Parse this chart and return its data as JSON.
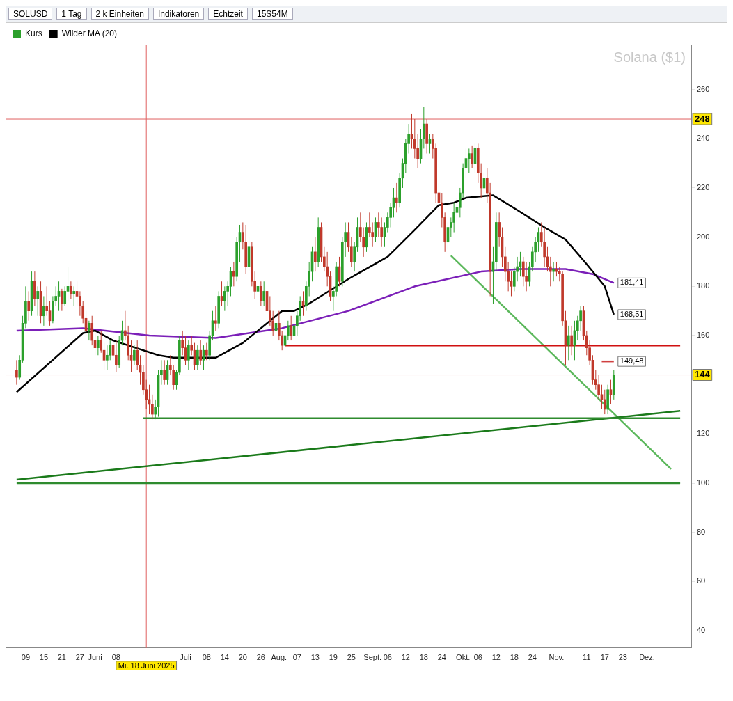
{
  "chart_data": {
    "type": "candlestick",
    "title": "Solana ($1)",
    "legend": "top left",
    "grid": false,
    "xlim": [
      "2025-05-06",
      "2025-12-12"
    ],
    "ylim": [
      33,
      278
    ],
    "yticks": [
      40,
      60,
      80,
      100,
      120,
      160,
      180,
      200,
      220,
      240,
      260
    ],
    "xticks": [
      {
        "value": "2025-05-09",
        "label": "09"
      },
      {
        "value": "2025-05-15",
        "label": "15"
      },
      {
        "value": "2025-05-21",
        "label": "21"
      },
      {
        "value": "2025-05-27",
        "label": "27"
      },
      {
        "value": "2025-06-01",
        "label": "Juni"
      },
      {
        "value": "2025-06-08",
        "label": "08"
      },
      {
        "value": "2025-07-01",
        "label": "Juli"
      },
      {
        "value": "2025-07-08",
        "label": "08"
      },
      {
        "value": "2025-07-14",
        "label": "14"
      },
      {
        "value": "2025-07-20",
        "label": "20"
      },
      {
        "value": "2025-07-26",
        "label": "26"
      },
      {
        "value": "2025-08-01",
        "label": "Aug."
      },
      {
        "value": "2025-08-07",
        "label": "07"
      },
      {
        "value": "2025-08-13",
        "label": "13"
      },
      {
        "value": "2025-08-19",
        "label": "19"
      },
      {
        "value": "2025-08-25",
        "label": "25"
      },
      {
        "value": "2025-09-01",
        "label": "Sept."
      },
      {
        "value": "2025-09-06",
        "label": "06"
      },
      {
        "value": "2025-09-12",
        "label": "12"
      },
      {
        "value": "2025-09-18",
        "label": "18"
      },
      {
        "value": "2025-09-24",
        "label": "24"
      },
      {
        "value": "2025-10-01",
        "label": "Okt."
      },
      {
        "value": "2025-10-06",
        "label": "06"
      },
      {
        "value": "2025-10-12",
        "label": "12"
      },
      {
        "value": "2025-10-18",
        "label": "18"
      },
      {
        "value": "2025-10-24",
        "label": "24"
      },
      {
        "value": "2025-11-01",
        "label": "Nov."
      },
      {
        "value": "2025-11-11",
        "label": "11"
      },
      {
        "value": "2025-11-17",
        "label": "17"
      },
      {
        "value": "2025-11-23",
        "label": "23"
      },
      {
        "value": "2025-12-01",
        "label": "Dez."
      }
    ],
    "ref_lines": [
      {
        "axis": "y",
        "value": 248,
        "label": "248",
        "color": "#e06060"
      },
      {
        "axis": "y",
        "value": 144,
        "label": "144",
        "color": "#e06060"
      },
      {
        "axis": "x",
        "value": "2025-06-18",
        "label": "Mi. 18 Juni 2025",
        "color": "#e06060"
      }
    ],
    "annotations": [
      "SOLUSD",
      "1 Tag",
      "2 k Einheiten",
      "Indikatoren",
      "Echtzeit",
      "15S54M"
    ],
    "series": [
      {
        "name": "Kurs",
        "type": "candlestick",
        "colors": [
          "#c0392b",
          "#2ca02c",
          "#2ca02c",
          "#2ca02c",
          "#c0392b",
          "#2ca02c",
          "#c0392b",
          "#2ca02c",
          "#c0392b",
          "#2ca02c",
          "#c0392b",
          "#c0392b",
          "#2ca02c",
          "#2ca02c",
          "#2ca02c",
          "#c0392b",
          "#2ca02c",
          "#2ca02c",
          "#c0392b",
          "#2ca02c",
          "#c0392b",
          "#c0392b",
          "#c0392b",
          "#c0392b",
          "#2ca02c",
          "#c0392b",
          "#c0392b",
          "#2ca02c",
          "#c0392b",
          "#c0392b",
          "#2ca02c",
          "#2ca02c",
          "#c0392b",
          "#c0392b",
          "#2ca02c",
          "#2ca02c",
          "#c0392b",
          "#c0392b",
          "#c0392b",
          "#2ca02c",
          "#c0392b",
          "#c0392b",
          "#c0392b",
          "#c0392b",
          "#c0392b",
          "#c0392b",
          "#2ca02c",
          "#2ca02c",
          "#2ca02c",
          "#c0392b",
          "#2ca02c",
          "#c0392b",
          "#c0392b",
          "#2ca02c",
          "#2ca02c",
          "#c0392b",
          "#c0392b",
          "#2ca02c",
          "#c0392b",
          "#c0392b",
          "#2ca02c",
          "#c0392b",
          "#2ca02c",
          "#c0392b",
          "#2ca02c",
          "#2ca02c",
          "#c0392b",
          "#2ca02c",
          "#c0392b",
          "#2ca02c",
          "#2ca02c",
          "#2ca02c",
          "#c0392b",
          "#2ca02c",
          "#2ca02c",
          "#c0392b",
          "#c0392b",
          "#2ca02c",
          "#c0392b",
          "#c0392b",
          "#2ca02c",
          "#c0392b",
          "#2ca02c",
          "#c0392b",
          "#c0392b",
          "#c0392b",
          "#2ca02c",
          "#c0392b",
          "#c0392b",
          "#2ca02c",
          "#2ca02c",
          "#c0392b",
          "#2ca02c",
          "#2ca02c",
          "#2ca02c",
          "#c0392b",
          "#2ca02c",
          "#2ca02c",
          "#2ca02c",
          "#c0392b",
          "#2ca02c",
          "#c0392b",
          "#c0392b",
          "#c0392b",
          "#c0392b",
          "#2ca02c",
          "#2ca02c",
          "#c0392b",
          "#2ca02c",
          "#2ca02c",
          "#c0392b",
          "#c0392b",
          "#2ca02c",
          "#2ca02c",
          "#c0392b",
          "#c0392b",
          "#2ca02c",
          "#c0392b",
          "#c0392b",
          "#2ca02c",
          "#c0392b",
          "#c0392b",
          "#2ca02c",
          "#2ca02c",
          "#2ca02c",
          "#2ca02c",
          "#c0392b",
          "#2ca02c",
          "#2ca02c",
          "#2ca02c",
          "#2ca02c",
          "#c0392b",
          "#c0392b",
          "#c0392b",
          "#2ca02c",
          "#2ca02c",
          "#c0392b",
          "#2ca02c",
          "#c0392b",
          "#c0392b",
          "#c0392b",
          "#c0392b",
          "#c0392b",
          "#2ca02c",
          "#2ca02c",
          "#2ca02c",
          "#2ca02c",
          "#2ca02c",
          "#2ca02c",
          "#2ca02c",
          "#2ca02c",
          "#c0392b",
          "#2ca02c",
          "#c0392b",
          "#c0392b",
          "#2ca02c",
          "#c0392b",
          "#c0392b",
          "#2ca02c",
          "#2ca02c",
          "#c0392b",
          "#c0392b",
          "#c0392b",
          "#c0392b",
          "#c0392b",
          "#2ca02c",
          "#2ca02c",
          "#2ca02c",
          "#c0392b",
          "#c0392b",
          "#2ca02c",
          "#2ca02c",
          "#2ca02c",
          "#2ca02c",
          "#c0392b",
          "#c0392b",
          "#c0392b",
          "#c0392b",
          "#2ca02c",
          "#c0392b",
          "#c0392b",
          "#c0392b",
          "#c0392b",
          "#2ca02c",
          "#c0392b",
          "#2ca02c",
          "#2ca02c",
          "#2ca02c",
          "#c0392b",
          "#c0392b",
          "#c0392b",
          "#c0392b",
          "#c0392b",
          "#c0392b",
          "#c0392b",
          "#c0392b",
          "#2ca02c",
          "#c0392b",
          "#2ca02c"
        ],
        "x": [
          "2025-05-06",
          "2025-05-07",
          "2025-05-08",
          "2025-05-09",
          "2025-05-10",
          "2025-05-11",
          "2025-05-12",
          "2025-05-13",
          "2025-05-14",
          "2025-05-15",
          "2025-05-16",
          "2025-05-17",
          "2025-05-18",
          "2025-05-19",
          "2025-05-20",
          "2025-05-21",
          "2025-05-22",
          "2025-05-23",
          "2025-05-24",
          "2025-05-25",
          "2025-05-26",
          "2025-05-27",
          "2025-05-28",
          "2025-05-29",
          "2025-05-30",
          "2025-05-31",
          "2025-06-01",
          "2025-06-02",
          "2025-06-03",
          "2025-06-04",
          "2025-06-05",
          "2025-06-06",
          "2025-06-07",
          "2025-06-08",
          "2025-06-09",
          "2025-06-10",
          "2025-06-11",
          "2025-06-12",
          "2025-06-13",
          "2025-06-14",
          "2025-06-15",
          "2025-06-16",
          "2025-06-17",
          "2025-06-18",
          "2025-06-19",
          "2025-06-20",
          "2025-06-21",
          "2025-06-22",
          "2025-06-23",
          "2025-06-24",
          "2025-06-25",
          "2025-06-26",
          "2025-06-27",
          "2025-06-28",
          "2025-06-29",
          "2025-06-30",
          "2025-07-01",
          "2025-07-02",
          "2025-07-03",
          "2025-07-04",
          "2025-07-05",
          "2025-07-06",
          "2025-07-07",
          "2025-07-08",
          "2025-07-09",
          "2025-07-10",
          "2025-07-11",
          "2025-07-12",
          "2025-07-13",
          "2025-07-14",
          "2025-07-15",
          "2025-07-16",
          "2025-07-17",
          "2025-07-18",
          "2025-07-19",
          "2025-07-20",
          "2025-07-21",
          "2025-07-22",
          "2025-07-23",
          "2025-07-24",
          "2025-07-25",
          "2025-07-26",
          "2025-07-27",
          "2025-07-28",
          "2025-07-29",
          "2025-07-30",
          "2025-07-31",
          "2025-08-01",
          "2025-08-02",
          "2025-08-03",
          "2025-08-04",
          "2025-08-05",
          "2025-08-06",
          "2025-08-07",
          "2025-08-08",
          "2025-08-09",
          "2025-08-10",
          "2025-08-11",
          "2025-08-12",
          "2025-08-13",
          "2025-08-14",
          "2025-08-15",
          "2025-08-16",
          "2025-08-17",
          "2025-08-18",
          "2025-08-19",
          "2025-08-20",
          "2025-08-21",
          "2025-08-22",
          "2025-08-23",
          "2025-08-24",
          "2025-08-25",
          "2025-08-26",
          "2025-08-27",
          "2025-08-28",
          "2025-08-29",
          "2025-08-30",
          "2025-08-31",
          "2025-09-01",
          "2025-09-02",
          "2025-09-03",
          "2025-09-04",
          "2025-09-05",
          "2025-09-06",
          "2025-09-07",
          "2025-09-08",
          "2025-09-09",
          "2025-09-10",
          "2025-09-11",
          "2025-09-12",
          "2025-09-13",
          "2025-09-14",
          "2025-09-15",
          "2025-09-16",
          "2025-09-17",
          "2025-09-18",
          "2025-09-19",
          "2025-09-20",
          "2025-09-21",
          "2025-09-22",
          "2025-09-23",
          "2025-09-24",
          "2025-09-25",
          "2025-09-26",
          "2025-09-27",
          "2025-09-28",
          "2025-09-29",
          "2025-09-30",
          "2025-10-01",
          "2025-10-02",
          "2025-10-03",
          "2025-10-04",
          "2025-10-05",
          "2025-10-06",
          "2025-10-07",
          "2025-10-08",
          "2025-10-09",
          "2025-10-10",
          "2025-10-11",
          "2025-10-12",
          "2025-10-13",
          "2025-10-14",
          "2025-10-15",
          "2025-10-16",
          "2025-10-17",
          "2025-10-18",
          "2025-10-19",
          "2025-10-20",
          "2025-10-21",
          "2025-10-22",
          "2025-10-23",
          "2025-10-24",
          "2025-10-25",
          "2025-10-26",
          "2025-10-27",
          "2025-10-28",
          "2025-10-29",
          "2025-10-30",
          "2025-10-31",
          "2025-11-01",
          "2025-11-02",
          "2025-11-03",
          "2025-11-04",
          "2025-11-05",
          "2025-11-06",
          "2025-11-07",
          "2025-11-08",
          "2025-11-09",
          "2025-11-10",
          "2025-11-11",
          "2025-11-12",
          "2025-11-13",
          "2025-11-14",
          "2025-11-15",
          "2025-11-16",
          "2025-11-17",
          "2025-11-18",
          "2025-11-19",
          "2025-11-20"
        ],
        "ohlc": [
          [
            146,
            150,
            140,
            143
          ],
          [
            143,
            152,
            142,
            150
          ],
          [
            150,
            168,
            149,
            165
          ],
          [
            165,
            180,
            163,
            174
          ],
          [
            174,
            178,
            166,
            170
          ],
          [
            170,
            186,
            168,
            182
          ],
          [
            182,
            186,
            172,
            175
          ],
          [
            175,
            180,
            168,
            178
          ],
          [
            178,
            182,
            165,
            168
          ],
          [
            168,
            176,
            164,
            172
          ],
          [
            172,
            180,
            168,
            170
          ],
          [
            170,
            174,
            164,
            166
          ],
          [
            166,
            176,
            165,
            174
          ],
          [
            174,
            180,
            172,
            176
          ],
          [
            176,
            182,
            170,
            178
          ],
          [
            178,
            179,
            170,
            173
          ],
          [
            173,
            180,
            172,
            178
          ],
          [
            178,
            188,
            174,
            180
          ],
          [
            180,
            182,
            175,
            177
          ],
          [
            177,
            180,
            172,
            178
          ],
          [
            178,
            182,
            172,
            176
          ],
          [
            176,
            178,
            168,
            172
          ],
          [
            172,
            174,
            165,
            167
          ],
          [
            167,
            170,
            160,
            162
          ],
          [
            162,
            166,
            158,
            165
          ],
          [
            165,
            168,
            156,
            158
          ],
          [
            158,
            162,
            152,
            155
          ],
          [
            155,
            160,
            152,
            158
          ],
          [
            158,
            162,
            153,
            154
          ],
          [
            154,
            157,
            146,
            150
          ],
          [
            150,
            156,
            146,
            152
          ],
          [
            152,
            158,
            150,
            156
          ],
          [
            156,
            160,
            150,
            152
          ],
          [
            152,
            158,
            145,
            148
          ],
          [
            148,
            160,
            147,
            158
          ],
          [
            158,
            166,
            156,
            162
          ],
          [
            162,
            170,
            158,
            160
          ],
          [
            160,
            164,
            150,
            152
          ],
          [
            152,
            158,
            145,
            150
          ],
          [
            150,
            156,
            148,
            154
          ],
          [
            154,
            158,
            146,
            148
          ],
          [
            148,
            152,
            140,
            145
          ],
          [
            145,
            148,
            136,
            138
          ],
          [
            138,
            142,
            130,
            134
          ],
          [
            134,
            140,
            128,
            132
          ],
          [
            132,
            136,
            126,
            128
          ],
          [
            128,
            134,
            126,
            131
          ],
          [
            131,
            146,
            127,
            144
          ],
          [
            144,
            150,
            140,
            146
          ],
          [
            146,
            150,
            140,
            142
          ],
          [
            142,
            150,
            140,
            148
          ],
          [
            148,
            152,
            144,
            146
          ],
          [
            146,
            148,
            138,
            140
          ],
          [
            140,
            146,
            138,
            145
          ],
          [
            145,
            160,
            144,
            158
          ],
          [
            158,
            162,
            152,
            155
          ],
          [
            155,
            160,
            148,
            150
          ],
          [
            150,
            158,
            146,
            156
          ],
          [
            156,
            160,
            152,
            154
          ],
          [
            154,
            157,
            146,
            148
          ],
          [
            148,
            156,
            146,
            154
          ],
          [
            154,
            158,
            148,
            150
          ],
          [
            150,
            156,
            146,
            154
          ],
          [
            154,
            157,
            150,
            152
          ],
          [
            152,
            162,
            150,
            160
          ],
          [
            160,
            170,
            158,
            166
          ],
          [
            166,
            172,
            162,
            165
          ],
          [
            165,
            178,
            163,
            176
          ],
          [
            176,
            182,
            172,
            174
          ],
          [
            174,
            180,
            170,
            178
          ],
          [
            178,
            182,
            172,
            180
          ],
          [
            180,
            188,
            176,
            186
          ],
          [
            186,
            190,
            180,
            184
          ],
          [
            184,
            200,
            182,
            198
          ],
          [
            198,
            205,
            190,
            202
          ],
          [
            202,
            206,
            195,
            198
          ],
          [
            198,
            205,
            185,
            188
          ],
          [
            188,
            200,
            186,
            196
          ],
          [
            196,
            198,
            180,
            182
          ],
          [
            182,
            186,
            175,
            178
          ],
          [
            178,
            184,
            174,
            180
          ],
          [
            180,
            182,
            172,
            174
          ],
          [
            174,
            182,
            172,
            178
          ],
          [
            178,
            180,
            168,
            170
          ],
          [
            170,
            176,
            164,
            166
          ],
          [
            166,
            170,
            160,
            162
          ],
          [
            162,
            168,
            160,
            165
          ],
          [
            165,
            170,
            158,
            160
          ],
          [
            160,
            162,
            154,
            156
          ],
          [
            156,
            162,
            154,
            160
          ],
          [
            160,
            166,
            158,
            164
          ],
          [
            164,
            168,
            158,
            160
          ],
          [
            160,
            166,
            156,
            164
          ],
          [
            164,
            170,
            160,
            168
          ],
          [
            168,
            176,
            166,
            174
          ],
          [
            174,
            178,
            168,
            172
          ],
          [
            172,
            182,
            170,
            180
          ],
          [
            180,
            190,
            176,
            186
          ],
          [
            186,
            196,
            182,
            194
          ],
          [
            194,
            200,
            186,
            190
          ],
          [
            190,
            208,
            188,
            204
          ],
          [
            204,
            206,
            190,
            192
          ],
          [
            192,
            196,
            186,
            188
          ],
          [
            188,
            194,
            180,
            184
          ],
          [
            184,
            186,
            174,
            176
          ],
          [
            176,
            180,
            170,
            178
          ],
          [
            178,
            190,
            176,
            188
          ],
          [
            188,
            192,
            180,
            182
          ],
          [
            182,
            200,
            180,
            198
          ],
          [
            198,
            206,
            192,
            202
          ],
          [
            202,
            206,
            194,
            196
          ],
          [
            196,
            200,
            188,
            190
          ],
          [
            190,
            198,
            186,
            196
          ],
          [
            196,
            208,
            194,
            204
          ],
          [
            204,
            210,
            198,
            200
          ],
          [
            200,
            204,
            192,
            196
          ],
          [
            196,
            206,
            194,
            204
          ],
          [
            204,
            210,
            200,
            202
          ],
          [
            202,
            206,
            196,
            200
          ],
          [
            200,
            208,
            198,
            206
          ],
          [
            206,
            210,
            200,
            204
          ],
          [
            204,
            208,
            196,
            200
          ],
          [
            200,
            206,
            196,
            204
          ],
          [
            204,
            210,
            202,
            208
          ],
          [
            208,
            214,
            204,
            212
          ],
          [
            212,
            220,
            208,
            216
          ],
          [
            216,
            222,
            210,
            214
          ],
          [
            214,
            226,
            212,
            224
          ],
          [
            224,
            232,
            220,
            230
          ],
          [
            230,
            240,
            226,
            238
          ],
          [
            238,
            246,
            234,
            242
          ],
          [
            242,
            250,
            236,
            240
          ],
          [
            240,
            248,
            232,
            236
          ],
          [
            236,
            242,
            228,
            232
          ],
          [
            232,
            244,
            230,
            240
          ],
          [
            240,
            253,
            236,
            246
          ],
          [
            246,
            248,
            234,
            238
          ],
          [
            238,
            242,
            234,
            240
          ],
          [
            240,
            242,
            232,
            236
          ],
          [
            236,
            238,
            214,
            218
          ],
          [
            218,
            222,
            210,
            214
          ],
          [
            214,
            218,
            204,
            208
          ],
          [
            208,
            210,
            194,
            198
          ],
          [
            198,
            206,
            195,
            204
          ],
          [
            204,
            208,
            200,
            206
          ],
          [
            206,
            214,
            202,
            210
          ],
          [
            210,
            216,
            206,
            212
          ],
          [
            212,
            220,
            208,
            218
          ],
          [
            218,
            230,
            216,
            228
          ],
          [
            228,
            236,
            224,
            232
          ],
          [
            232,
            236,
            226,
            234
          ],
          [
            234,
            237,
            228,
            230
          ],
          [
            230,
            238,
            226,
            236
          ],
          [
            236,
            238,
            222,
            226
          ],
          [
            226,
            230,
            216,
            220
          ],
          [
            220,
            226,
            216,
            224
          ],
          [
            224,
            228,
            214,
            218
          ],
          [
            218,
            222,
            176,
            186
          ],
          [
            186,
            196,
            173,
            190
          ],
          [
            190,
            210,
            186,
            206
          ],
          [
            206,
            210,
            196,
            200
          ],
          [
            200,
            204,
            188,
            192
          ],
          [
            192,
            196,
            182,
            186
          ],
          [
            186,
            190,
            178,
            182
          ],
          [
            182,
            186,
            176,
            180
          ],
          [
            180,
            188,
            178,
            186
          ],
          [
            186,
            192,
            182,
            188
          ],
          [
            188,
            194,
            184,
            190
          ],
          [
            190,
            192,
            180,
            184
          ],
          [
            184,
            190,
            178,
            182
          ],
          [
            182,
            190,
            180,
            188
          ],
          [
            188,
            196,
            186,
            194
          ],
          [
            194,
            200,
            190,
            198
          ],
          [
            198,
            204,
            194,
            202
          ],
          [
            202,
            206,
            196,
            198
          ],
          [
            198,
            204,
            188,
            192
          ],
          [
            192,
            196,
            186,
            188
          ],
          [
            188,
            192,
            180,
            186
          ],
          [
            186,
            190,
            182,
            187
          ],
          [
            187,
            190,
            184,
            186
          ],
          [
            186,
            188,
            182,
            185
          ],
          [
            185,
            186,
            164,
            166
          ],
          [
            166,
            170,
            148,
            156
          ],
          [
            156,
            164,
            150,
            160
          ],
          [
            160,
            164,
            152,
            156
          ],
          [
            156,
            166,
            150,
            162
          ],
          [
            162,
            168,
            158,
            166
          ],
          [
            166,
            172,
            162,
            170
          ],
          [
            170,
            172,
            158,
            160
          ],
          [
            160,
            162,
            152,
            155
          ],
          [
            155,
            158,
            148,
            150
          ],
          [
            150,
            152,
            140,
            142
          ],
          [
            142,
            146,
            138,
            140
          ],
          [
            140,
            144,
            134,
            136
          ],
          [
            136,
            140,
            130,
            134
          ],
          [
            134,
            138,
            128,
            130
          ],
          [
            130,
            140,
            128,
            138
          ],
          [
            138,
            142,
            132,
            136
          ],
          [
            136,
            146,
            134,
            144
          ]
        ]
      },
      {
        "name": "Wilder MA (20)",
        "type": "line",
        "color": "#000000",
        "x": [
          "2025-05-06",
          "2025-05-28",
          "2025-06-01",
          "2025-06-07",
          "2025-06-22",
          "2025-06-27",
          "2025-07-11",
          "2025-07-20",
          "2025-08-02",
          "2025-08-06",
          "2025-08-11",
          "2025-08-24",
          "2025-09-06",
          "2025-09-15",
          "2025-09-23",
          "2025-09-28",
          "2025-10-02",
          "2025-10-11",
          "2025-10-19",
          "2025-10-28",
          "2025-11-04",
          "2025-11-11",
          "2025-11-17",
          "2025-11-20"
        ],
        "values": [
          137,
          161,
          162,
          158,
          152,
          151,
          151,
          157,
          170,
          170,
          173,
          183,
          192,
          203,
          213,
          214,
          216,
          217,
          211,
          204,
          199,
          189,
          180,
          168.51
        ],
        "value_labels": [
          null,
          null,
          null,
          null,
          null,
          null,
          null,
          null,
          null,
          null,
          null,
          null,
          null,
          null,
          null,
          null,
          null,
          null,
          null,
          null,
          null,
          null,
          null,
          "168,51"
        ]
      },
      {
        "type": "line",
        "color": "#7b1fb8",
        "x": [
          "2025-05-06",
          "2025-05-28",
          "2025-06-19",
          "2025-07-11",
          "2025-08-02",
          "2025-08-24",
          "2025-09-15",
          "2025-10-07",
          "2025-10-20",
          "2025-11-04",
          "2025-11-13",
          "2025-11-20"
        ],
        "values": [
          162,
          163,
          160,
          159,
          163,
          170,
          180,
          186,
          187,
          187,
          185,
          181.41
        ],
        "value_labels": [
          null,
          null,
          null,
          null,
          null,
          null,
          null,
          null,
          null,
          null,
          null,
          "181,41"
        ]
      },
      {
        "type": "line",
        "color": "#d04040",
        "x": [
          "2025-11-16",
          "2025-11-20"
        ],
        "values": [
          149.48,
          149.48
        ],
        "value_labels": [
          null,
          "149,48"
        ]
      },
      {
        "type": "line",
        "color": "#d01010",
        "x": [
          "2025-08-03",
          "2025-12-12"
        ],
        "values": [
          156,
          156
        ]
      },
      {
        "type": "line",
        "color": "#2e8b2e",
        "x": [
          "2025-06-17",
          "2025-12-12"
        ],
        "values": [
          126.4,
          126.4
        ]
      },
      {
        "type": "line",
        "color": "#2e8b2e",
        "x": [
          "2025-05-06",
          "2025-12-12"
        ],
        "values": [
          100,
          100
        ]
      },
      {
        "type": "line",
        "color": "#1a7a1a",
        "x": [
          "2025-05-06",
          "2025-12-12"
        ],
        "values": [
          101.4,
          129.4
        ]
      },
      {
        "type": "line",
        "color": "#5cb85c",
        "x": [
          "2025-09-27",
          "2025-12-09"
        ],
        "values": [
          192.5,
          105.7
        ]
      }
    ]
  }
}
